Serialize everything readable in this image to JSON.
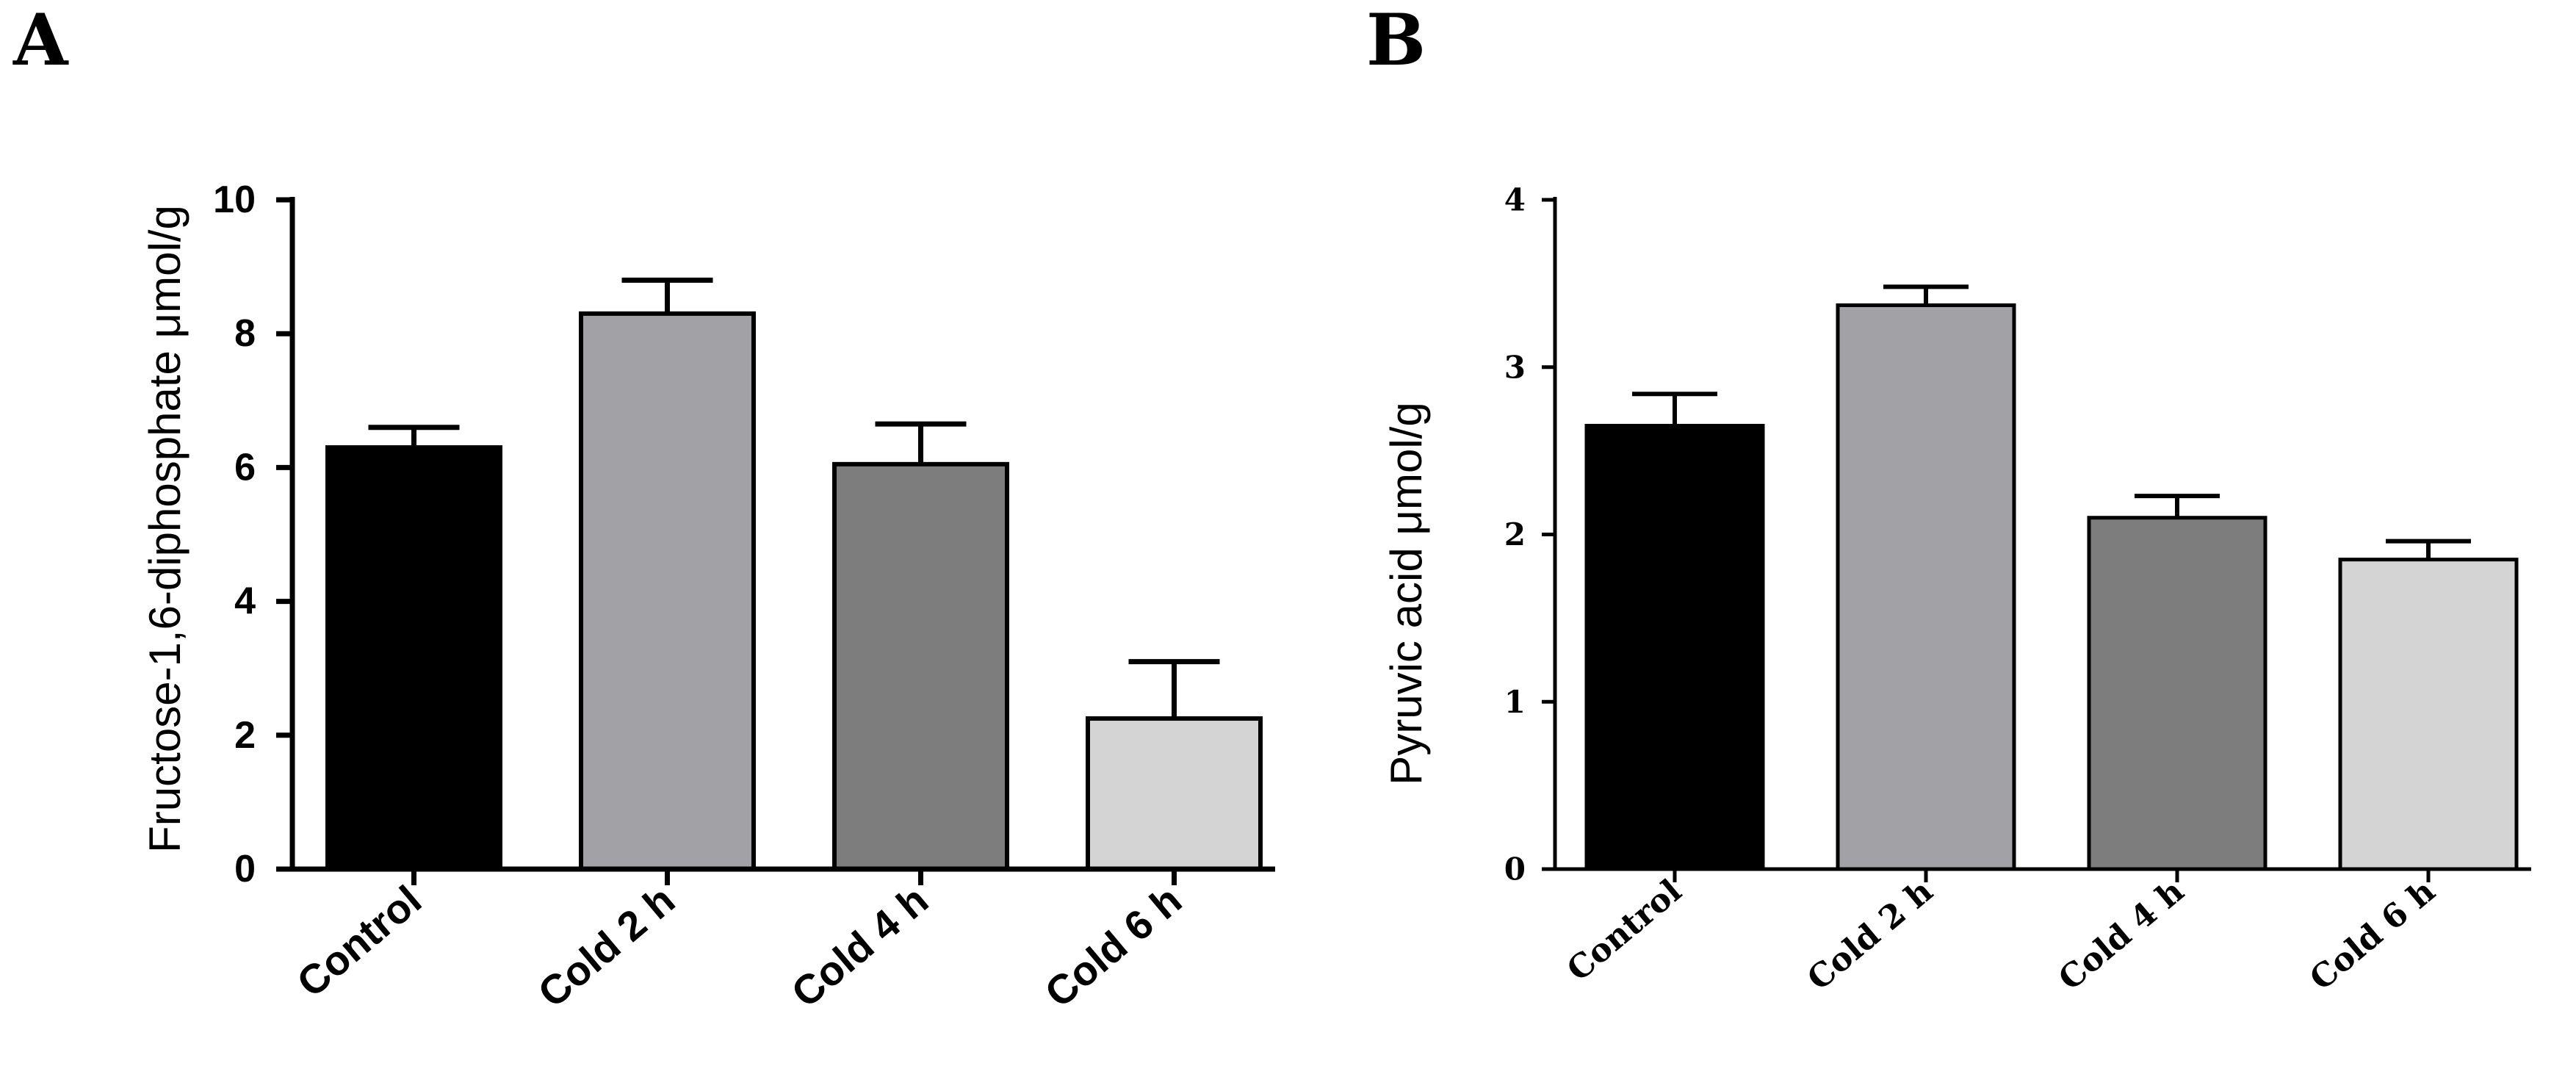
{
  "chart_data": [
    {
      "type": "bar",
      "panel_label": "A",
      "categories": [
        "Control",
        "Cold 2 h",
        "Cold 4 h",
        "Cold 6 h"
      ],
      "values": [
        6.3,
        8.3,
        6.05,
        2.25
      ],
      "error_upper": [
        6.6,
        8.8,
        6.65,
        3.1
      ],
      "colors": [
        "#000000",
        "#a2a2a6",
        "#7d7d7d",
        "#d4d4d4"
      ],
      "ylabel": "Fructose-1,6-diphosphate  μmol/g",
      "ylim": [
        0,
        10
      ],
      "yticks": [
        0,
        2,
        4,
        6,
        8,
        10
      ],
      "ytick_labels": [
        "0",
        "2",
        "4",
        "6",
        "8",
        "10"
      ],
      "grid": false
    },
    {
      "type": "bar",
      "panel_label": "B",
      "categories": [
        "Control",
        "Cold 2 h",
        "Cold 4 h",
        "Cold 6 h"
      ],
      "values": [
        2.65,
        3.37,
        2.1,
        1.85
      ],
      "error_upper": [
        2.84,
        3.48,
        2.23,
        1.96
      ],
      "colors": [
        "#000000",
        "#a2a2a6",
        "#7d7d7d",
        "#d4d4d4"
      ],
      "ylabel": "Pyruvic acid μmol/g",
      "ylim": [
        0,
        4
      ],
      "yticks": [
        0,
        1,
        2,
        3,
        4
      ],
      "ytick_labels": [
        "0",
        "1",
        "2",
        "3",
        "4"
      ],
      "grid": false
    }
  ]
}
